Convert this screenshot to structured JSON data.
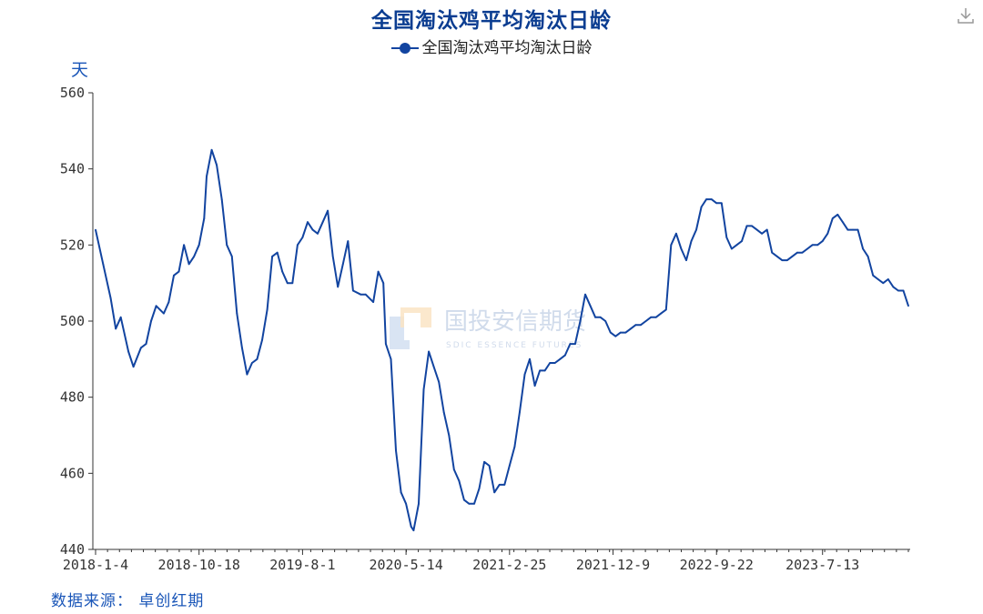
{
  "chart_data": {
    "type": "line",
    "title": "全国淘汰鸡平均淘汰日龄",
    "ylabel": "天",
    "ylim": [
      440,
      560
    ],
    "yticks": [
      440,
      460,
      480,
      500,
      520,
      540,
      560
    ],
    "xtick_labels": [
      "2018-1-4",
      "2018-10-18",
      "2019-8-1",
      "2020-5-14",
      "2021-2-25",
      "2021-12-9",
      "2022-9-22",
      "2023-7-13"
    ],
    "legend_position": "top-center",
    "grid": false,
    "series": [
      {
        "name": "全国淘汰鸡平均淘汰日龄",
        "color": "#1244a0",
        "points": [
          [
            "2018-01-04",
            524
          ],
          [
            "2018-01-25",
            515
          ],
          [
            "2018-02-15",
            506
          ],
          [
            "2018-03-01",
            498
          ],
          [
            "2018-03-15",
            501
          ],
          [
            "2018-04-05",
            492
          ],
          [
            "2018-04-19",
            488
          ],
          [
            "2018-05-10",
            493
          ],
          [
            "2018-05-24",
            494
          ],
          [
            "2018-06-07",
            500
          ],
          [
            "2018-06-21",
            504
          ],
          [
            "2018-07-12",
            502
          ],
          [
            "2018-07-26",
            505
          ],
          [
            "2018-08-09",
            512
          ],
          [
            "2018-08-23",
            513
          ],
          [
            "2018-09-06",
            520
          ],
          [
            "2018-09-20",
            515
          ],
          [
            "2018-10-04",
            517
          ],
          [
            "2018-10-18",
            520
          ],
          [
            "2018-11-01",
            527
          ],
          [
            "2018-11-08",
            538
          ],
          [
            "2018-11-22",
            545
          ],
          [
            "2018-12-06",
            541
          ],
          [
            "2018-12-20",
            532
          ],
          [
            "2019-01-03",
            520
          ],
          [
            "2019-01-17",
            517
          ],
          [
            "2019-01-31",
            502
          ],
          [
            "2019-02-14",
            493
          ],
          [
            "2019-02-28",
            486
          ],
          [
            "2019-03-14",
            489
          ],
          [
            "2019-03-28",
            490
          ],
          [
            "2019-04-11",
            495
          ],
          [
            "2019-04-25",
            503
          ],
          [
            "2019-05-09",
            517
          ],
          [
            "2019-05-23",
            518
          ],
          [
            "2019-06-06",
            513
          ],
          [
            "2019-06-20",
            510
          ],
          [
            "2019-07-04",
            510
          ],
          [
            "2019-07-18",
            520
          ],
          [
            "2019-08-01",
            522
          ],
          [
            "2019-08-15",
            526
          ],
          [
            "2019-08-29",
            524
          ],
          [
            "2019-09-12",
            523
          ],
          [
            "2019-09-26",
            526
          ],
          [
            "2019-10-10",
            529
          ],
          [
            "2019-10-24",
            517
          ],
          [
            "2019-11-07",
            509
          ],
          [
            "2019-11-21",
            515
          ],
          [
            "2019-12-05",
            521
          ],
          [
            "2019-12-19",
            508
          ],
          [
            "2020-01-09",
            507
          ],
          [
            "2020-01-23",
            507
          ],
          [
            "2020-02-13",
            505
          ],
          [
            "2020-02-27",
            513
          ],
          [
            "2020-03-12",
            510
          ],
          [
            "2020-03-19",
            494
          ],
          [
            "2020-04-02",
            490
          ],
          [
            "2020-04-16",
            466
          ],
          [
            "2020-04-30",
            455
          ],
          [
            "2020-05-14",
            452
          ],
          [
            "2020-05-28",
            446
          ],
          [
            "2020-06-04",
            445
          ],
          [
            "2020-06-18",
            452
          ],
          [
            "2020-07-02",
            482
          ],
          [
            "2020-07-16",
            492
          ],
          [
            "2020-07-30",
            488
          ],
          [
            "2020-08-13",
            484
          ],
          [
            "2020-08-27",
            476
          ],
          [
            "2020-09-10",
            470
          ],
          [
            "2020-09-24",
            461
          ],
          [
            "2020-10-08",
            458
          ],
          [
            "2020-10-22",
            453
          ],
          [
            "2020-11-05",
            452
          ],
          [
            "2020-11-19",
            452
          ],
          [
            "2020-12-03",
            456
          ],
          [
            "2020-12-17",
            463
          ],
          [
            "2020-12-31",
            462
          ],
          [
            "2021-01-14",
            455
          ],
          [
            "2021-01-28",
            457
          ],
          [
            "2021-02-11",
            457
          ],
          [
            "2021-02-25",
            462
          ],
          [
            "2021-03-11",
            467
          ],
          [
            "2021-03-25",
            476
          ],
          [
            "2021-04-08",
            486
          ],
          [
            "2021-04-22",
            490
          ],
          [
            "2021-05-06",
            483
          ],
          [
            "2021-05-20",
            487
          ],
          [
            "2021-06-03",
            487
          ],
          [
            "2021-06-17",
            489
          ],
          [
            "2021-07-01",
            489
          ],
          [
            "2021-07-15",
            490
          ],
          [
            "2021-07-29",
            491
          ],
          [
            "2021-08-12",
            494
          ],
          [
            "2021-08-26",
            494
          ],
          [
            "2021-09-09",
            500
          ],
          [
            "2021-09-23",
            507
          ],
          [
            "2021-10-07",
            504
          ],
          [
            "2021-10-21",
            501
          ],
          [
            "2021-11-04",
            501
          ],
          [
            "2021-11-18",
            500
          ],
          [
            "2021-12-02",
            497
          ],
          [
            "2021-12-16",
            496
          ],
          [
            "2021-12-30",
            497
          ],
          [
            "2022-01-13",
            497
          ],
          [
            "2022-01-27",
            498
          ],
          [
            "2022-02-10",
            499
          ],
          [
            "2022-02-24",
            499
          ],
          [
            "2022-03-10",
            500
          ],
          [
            "2022-03-24",
            501
          ],
          [
            "2022-04-07",
            501
          ],
          [
            "2022-04-21",
            502
          ],
          [
            "2022-05-05",
            503
          ],
          [
            "2022-05-19",
            520
          ],
          [
            "2022-06-02",
            523
          ],
          [
            "2022-06-16",
            519
          ],
          [
            "2022-06-30",
            516
          ],
          [
            "2022-07-14",
            521
          ],
          [
            "2022-07-28",
            524
          ],
          [
            "2022-08-11",
            530
          ],
          [
            "2022-08-25",
            532
          ],
          [
            "2022-09-08",
            532
          ],
          [
            "2022-09-22",
            531
          ],
          [
            "2022-10-06",
            531
          ],
          [
            "2022-10-20",
            522
          ],
          [
            "2022-11-03",
            519
          ],
          [
            "2022-11-17",
            520
          ],
          [
            "2022-12-01",
            521
          ],
          [
            "2022-12-15",
            525
          ],
          [
            "2022-12-29",
            525
          ],
          [
            "2023-01-12",
            524
          ],
          [
            "2023-01-26",
            523
          ],
          [
            "2023-02-09",
            524
          ],
          [
            "2023-02-23",
            518
          ],
          [
            "2023-03-09",
            517
          ],
          [
            "2023-03-23",
            516
          ],
          [
            "2023-04-06",
            516
          ],
          [
            "2023-04-20",
            517
          ],
          [
            "2023-05-04",
            518
          ],
          [
            "2023-05-18",
            518
          ],
          [
            "2023-06-01",
            519
          ],
          [
            "2023-06-15",
            520
          ],
          [
            "2023-06-29",
            520
          ],
          [
            "2023-07-13",
            521
          ],
          [
            "2023-07-27",
            523
          ],
          [
            "2023-08-10",
            527
          ],
          [
            "2023-08-24",
            528
          ],
          [
            "2023-09-07",
            526
          ],
          [
            "2023-09-21",
            524
          ],
          [
            "2023-10-05",
            524
          ],
          [
            "2023-10-19",
            524
          ],
          [
            "2023-11-02",
            519
          ],
          [
            "2023-11-16",
            517
          ],
          [
            "2023-11-30",
            512
          ],
          [
            "2023-12-14",
            511
          ],
          [
            "2023-12-28",
            510
          ],
          [
            "2024-01-11",
            511
          ],
          [
            "2024-01-25",
            509
          ],
          [
            "2024-02-08",
            508
          ],
          [
            "2024-02-22",
            508
          ],
          [
            "2024-03-07",
            504
          ]
        ]
      }
    ]
  },
  "watermark": {
    "name": "国投安信期货",
    "sub": "SDIC ESSENCE FUTURES"
  },
  "footer": {
    "source": "数据来源： 卓创红期"
  },
  "icons": {
    "download": "download-icon"
  },
  "colors": {
    "line": "#1244a0",
    "title": "#0b3d91",
    "label_blue": "#1a56b8",
    "axis": "#333333"
  }
}
